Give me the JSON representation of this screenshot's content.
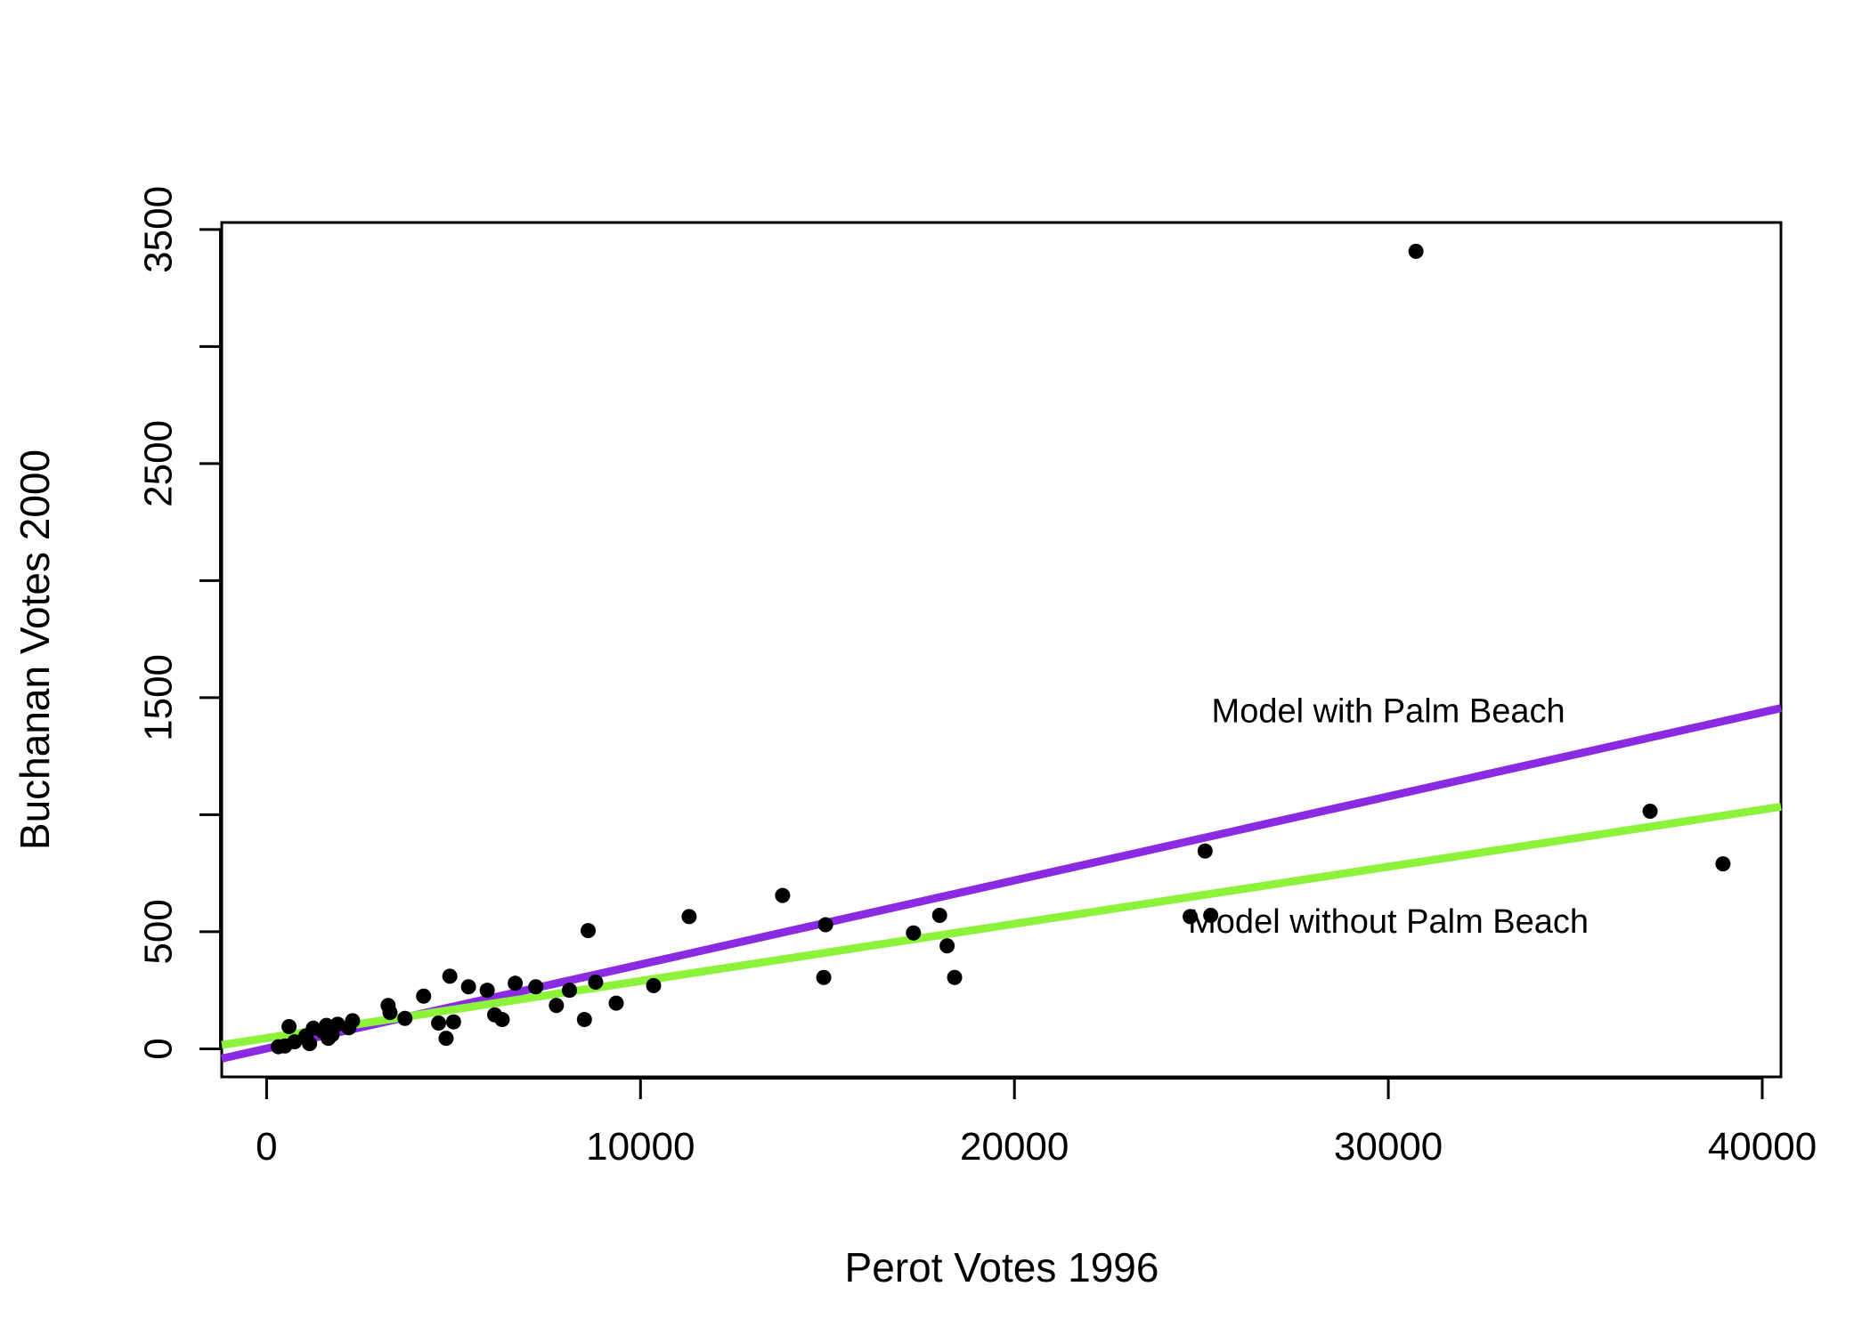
{
  "chart_data": {
    "type": "scatter",
    "title": "",
    "xlabel": "Perot Votes 1996",
    "ylabel": "Buchanan Votes 2000",
    "xlim": [
      -1200,
      40500
    ],
    "ylim": [
      -120,
      3530
    ],
    "xticks": [
      0,
      10000,
      20000,
      30000,
      40000
    ],
    "yticks": [
      0,
      500,
      1000,
      1500,
      2000,
      2500,
      3000,
      3500
    ],
    "ytick_labels": [
      "0",
      "500",
      "",
      "1500",
      "",
      "2500",
      "",
      "3500"
    ],
    "grid": false,
    "colors": {
      "with_palm_beach": "#8a2be2",
      "without_palm_beach": "#8cf23a",
      "points": "#000000"
    },
    "points": [
      {
        "x": 316,
        "y": 9
      },
      {
        "x": 490,
        "y": 12
      },
      {
        "x": 600,
        "y": 95
      },
      {
        "x": 750,
        "y": 30
      },
      {
        "x": 1050,
        "y": 55
      },
      {
        "x": 1150,
        "y": 22
      },
      {
        "x": 1250,
        "y": 88
      },
      {
        "x": 1500,
        "y": 75
      },
      {
        "x": 1600,
        "y": 100
      },
      {
        "x": 1650,
        "y": 45
      },
      {
        "x": 1750,
        "y": 60
      },
      {
        "x": 1900,
        "y": 105
      },
      {
        "x": 2200,
        "y": 90
      },
      {
        "x": 2300,
        "y": 120
      },
      {
        "x": 3250,
        "y": 185
      },
      {
        "x": 3300,
        "y": 155
      },
      {
        "x": 3700,
        "y": 130
      },
      {
        "x": 4200,
        "y": 225
      },
      {
        "x": 4600,
        "y": 110
      },
      {
        "x": 4800,
        "y": 45
      },
      {
        "x": 4900,
        "y": 310
      },
      {
        "x": 5000,
        "y": 115
      },
      {
        "x": 5400,
        "y": 265
      },
      {
        "x": 5900,
        "y": 250
      },
      {
        "x": 6100,
        "y": 145
      },
      {
        "x": 6300,
        "y": 125
      },
      {
        "x": 6650,
        "y": 280
      },
      {
        "x": 7200,
        "y": 265
      },
      {
        "x": 7750,
        "y": 185
      },
      {
        "x": 8100,
        "y": 250
      },
      {
        "x": 8500,
        "y": 125
      },
      {
        "x": 8600,
        "y": 505
      },
      {
        "x": 8800,
        "y": 285
      },
      {
        "x": 9350,
        "y": 195
      },
      {
        "x": 10350,
        "y": 270
      },
      {
        "x": 11300,
        "y": 565
      },
      {
        "x": 13800,
        "y": 655
      },
      {
        "x": 14900,
        "y": 305
      },
      {
        "x": 14950,
        "y": 530
      },
      {
        "x": 17300,
        "y": 495
      },
      {
        "x": 18000,
        "y": 570
      },
      {
        "x": 18200,
        "y": 440
      },
      {
        "x": 18400,
        "y": 305
      },
      {
        "x": 24700,
        "y": 565
      },
      {
        "x": 25100,
        "y": 845
      },
      {
        "x": 25250,
        "y": 570
      },
      {
        "x": 30739,
        "y": 3407
      },
      {
        "x": 37000,
        "y": 1015
      },
      {
        "x": 38950,
        "y": 790
      }
    ],
    "lines": [
      {
        "name": "Model with Palm Beach",
        "color": "#8a2be2",
        "intercept": 1.3,
        "slope": 0.0359
      },
      {
        "name": "Model without Palm Beach",
        "color": "#8cf23a",
        "intercept": 45.8,
        "slope": 0.0244
      }
    ],
    "annotations": [
      {
        "text": "Model with Palm Beach",
        "x": 30000,
        "y": 1395
      },
      {
        "text": "Model without Palm Beach",
        "x": 30000,
        "y": 495
      }
    ]
  }
}
